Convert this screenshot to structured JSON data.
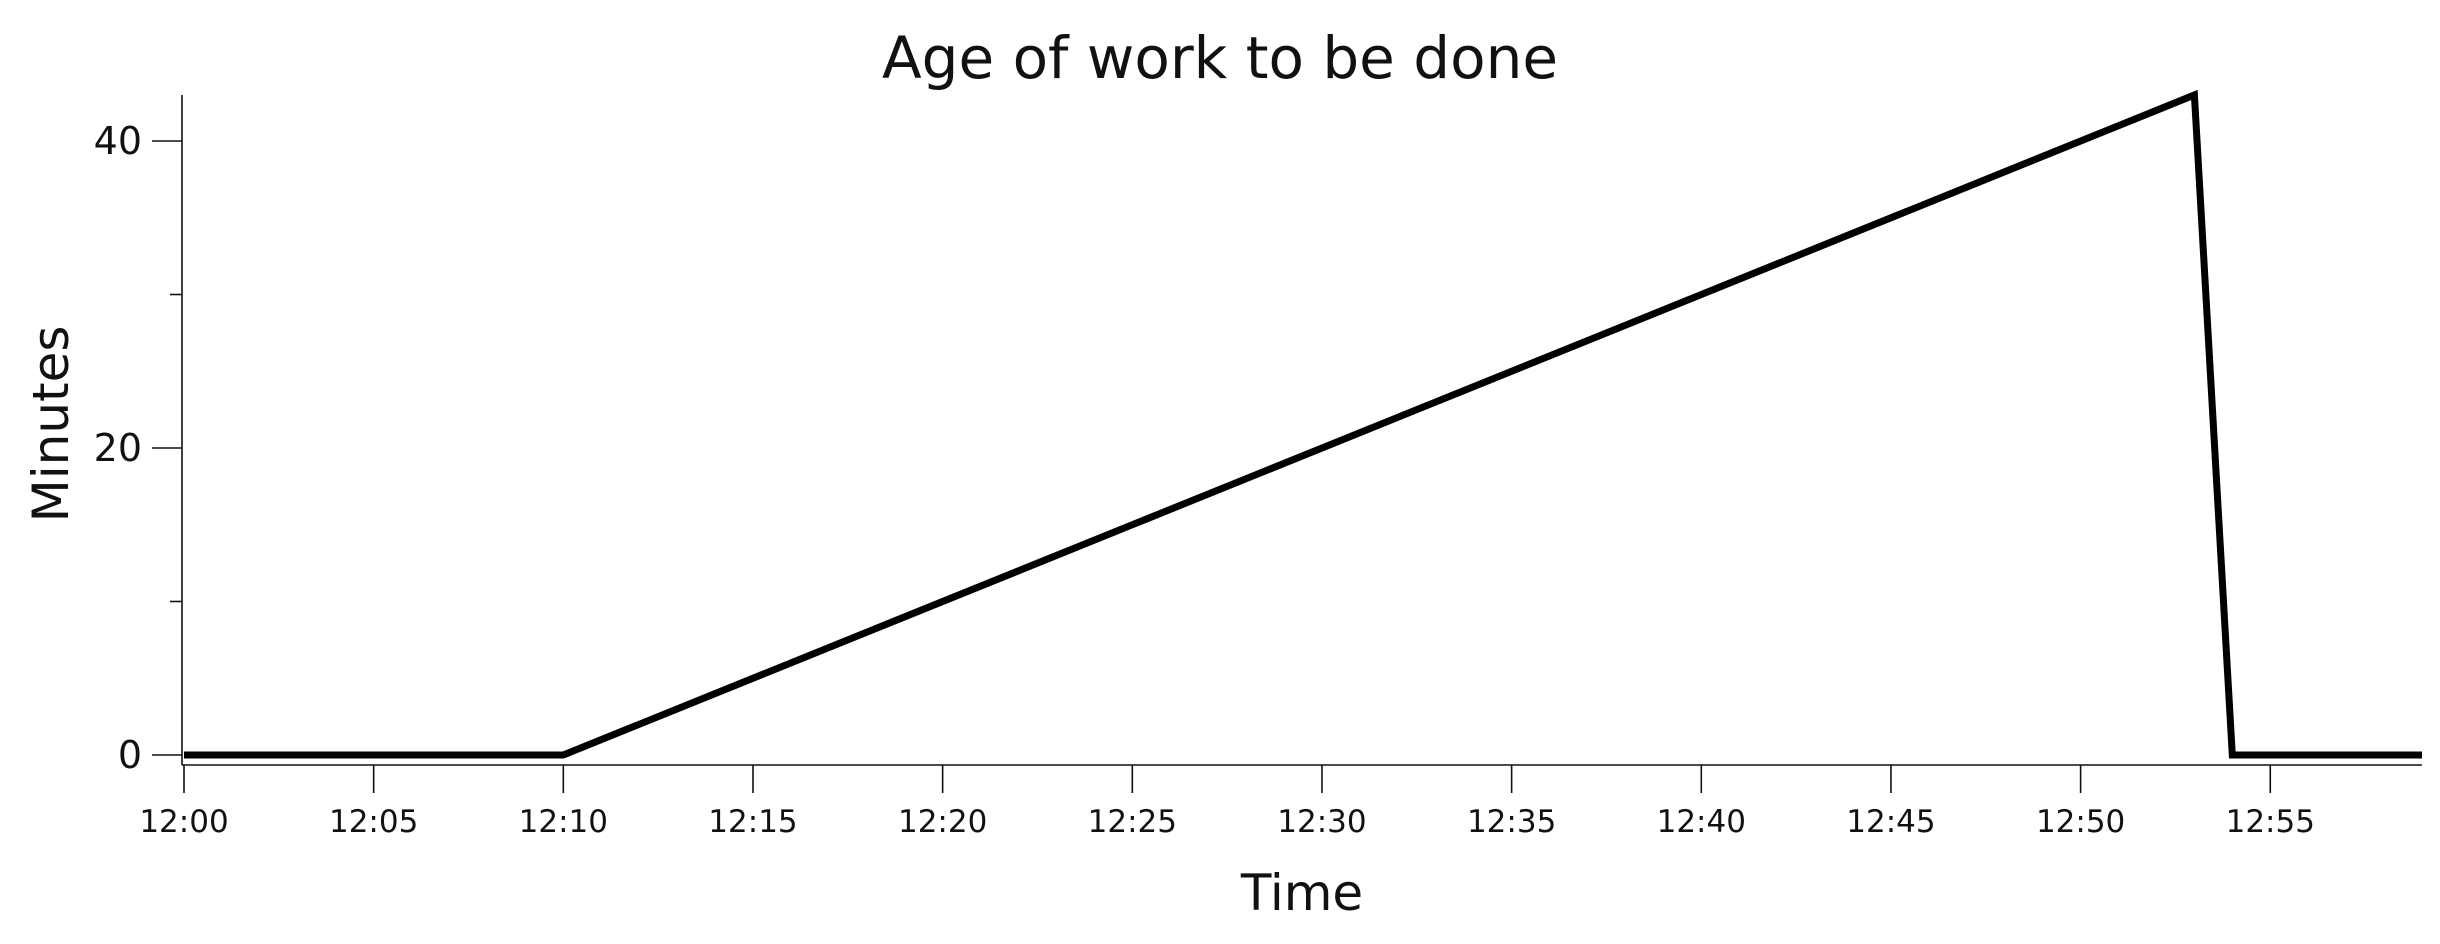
{
  "chart_data": {
    "type": "line",
    "title": "Age of work to be done",
    "xlabel": "Time",
    "ylabel": "Minutes",
    "x_tick_labels": [
      "12:00",
      "12:05",
      "12:10",
      "12:15",
      "12:20",
      "12:25",
      "12:30",
      "12:35",
      "12:40",
      "12:45",
      "12:50",
      "12:55"
    ],
    "xlim": [
      "12:00",
      "12:59"
    ],
    "y_ticks_labeled": [
      0,
      20,
      40
    ],
    "y_ticks_minor": [
      10,
      30
    ],
    "ylim": [
      -0.7,
      43
    ],
    "grid": false,
    "legend": "none",
    "line_color": "#000000",
    "series": [
      {
        "x": [
          "12:00",
          "12:10",
          "12:53",
          "12:54",
          "12:59"
        ],
        "y": [
          0,
          0,
          43,
          0,
          0
        ]
      }
    ]
  }
}
